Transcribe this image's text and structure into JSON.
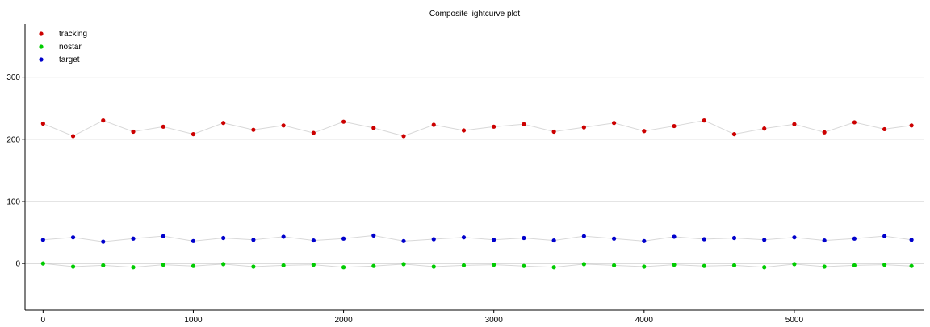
{
  "chart_data": {
    "type": "scatter",
    "title": "Composite lightcurve plot",
    "xlabel": "",
    "ylabel": "",
    "xlim": [
      -120,
      5860
    ],
    "ylim": [
      -75,
      385
    ],
    "xticks": [
      0,
      1000,
      2000,
      3000,
      4000,
      5000
    ],
    "yticks": [
      0,
      100,
      200,
      300
    ],
    "grid": "horizontal",
    "legend_position": "top-left",
    "x": [
      0,
      200,
      400,
      600,
      800,
      1000,
      1200,
      1400,
      1600,
      1800,
      2000,
      2200,
      2400,
      2600,
      2800,
      3000,
      3200,
      3400,
      3600,
      3800,
      4000,
      4200,
      4400,
      4600,
      4800,
      5000,
      5200,
      5400,
      5600,
      5780
    ],
    "series": [
      {
        "name": "tracking",
        "color": "#cc0000",
        "values": [
          225,
          205,
          230,
          212,
          220,
          208,
          226,
          215,
          222,
          210,
          228,
          218,
          205,
          223,
          214,
          220,
          224,
          212,
          219,
          226,
          213,
          221,
          230,
          208,
          217,
          224,
          211,
          227,
          216,
          222
        ]
      },
      {
        "name": "nostar",
        "color": "#00cc00",
        "values": [
          0,
          -5,
          -3,
          -6,
          -2,
          -4,
          -1,
          -5,
          -3,
          -2,
          -6,
          -4,
          -1,
          -5,
          -3,
          -2,
          -4,
          -6,
          -1,
          -3,
          -5,
          -2,
          -4,
          -3,
          -6,
          -1,
          -5,
          -3,
          -2,
          -4
        ]
      },
      {
        "name": "target",
        "color": "#0000cc",
        "values": [
          38,
          42,
          35,
          40,
          44,
          36,
          41,
          38,
          43,
          37,
          40,
          45,
          36,
          39,
          42,
          38,
          41,
          37,
          44,
          40,
          36,
          43,
          39,
          41,
          38,
          42,
          37,
          40,
          44,
          38
        ]
      }
    ]
  }
}
